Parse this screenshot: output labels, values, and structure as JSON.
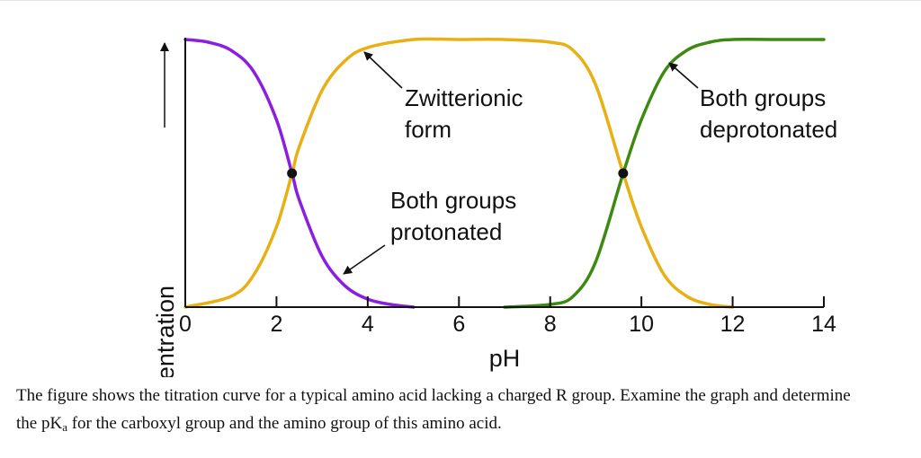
{
  "chart_data": {
    "type": "line",
    "xlabel": "pH",
    "ylabel": "Concentration",
    "xlim": [
      0,
      14
    ],
    "ylim": [
      0,
      1
    ],
    "x_ticks": [
      "0",
      "2",
      "4",
      "6",
      "8",
      "10",
      "12",
      "14"
    ],
    "series": [
      {
        "color": "#8B1EE0",
        "x": [
          0,
          0.5,
          1.0,
          1.5,
          2.0,
          2.34,
          2.5,
          3.0,
          3.5,
          4.0,
          4.5,
          5.0
        ],
        "y": [
          1.0,
          0.99,
          0.96,
          0.88,
          0.7,
          0.5,
          0.4,
          0.19,
          0.08,
          0.03,
          0.01,
          0.0
        ]
      },
      {
        "color": "#E8B012",
        "x": [
          0,
          1.0,
          1.5,
          2.0,
          2.34,
          2.5,
          3.0,
          3.5,
          4.0,
          5.0,
          6.0,
          7.0,
          8.0,
          8.5,
          9.0,
          9.6,
          10.0,
          10.5,
          11.0,
          11.5,
          12.0
        ],
        "y": [
          0.0,
          0.04,
          0.12,
          0.3,
          0.5,
          0.6,
          0.81,
          0.92,
          0.97,
          1.0,
          1.0,
          1.0,
          0.99,
          0.96,
          0.83,
          0.5,
          0.3,
          0.12,
          0.04,
          0.01,
          0.0
        ]
      },
      {
        "color": "#3E8A10",
        "x": [
          7.0,
          8.0,
          8.5,
          9.0,
          9.6,
          10.0,
          10.5,
          11.0,
          11.5,
          12.0,
          13.0,
          14.0
        ],
        "y": [
          0.0,
          0.01,
          0.04,
          0.17,
          0.5,
          0.7,
          0.88,
          0.96,
          0.99,
          1.0,
          1.0,
          1.0
        ]
      }
    ],
    "points": [
      {
        "x": 2.34,
        "y": 0.5
      },
      {
        "x": 9.6,
        "y": 0.5
      }
    ],
    "annotations": [
      {
        "lines": [
          "Zwitterionic",
          "form"
        ]
      },
      {
        "lines": [
          "Both groups",
          "deprotonated"
        ]
      },
      {
        "lines": [
          "Both groups",
          "protonated"
        ]
      }
    ]
  },
  "caption": {
    "line1": "The figure shows the titration curve for a typical amino acid lacking a charged R group. Examine the graph and determine",
    "line2_before": "the pK",
    "line2_sub": "a",
    "line2_after": " for the carboxyl group and the amino group of this amino acid."
  }
}
